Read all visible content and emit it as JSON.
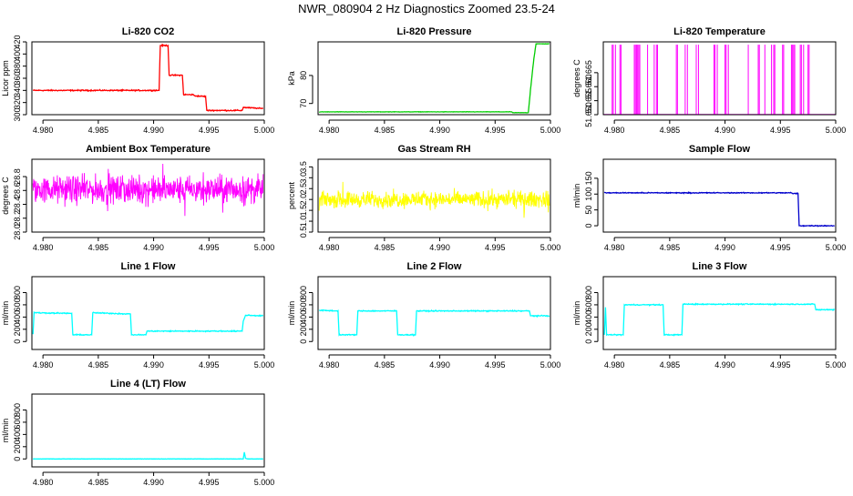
{
  "figure": {
    "title": "NWR_080904  2 Hz Diagnostics Zoomed 23.5-24"
  },
  "colors": {
    "red": "#ff0000",
    "green": "#00cc00",
    "magenta": "#ff00ff",
    "yellow": "#ffff00",
    "blue": "#0000cc",
    "cyan": "#00ffff"
  },
  "chart_data": [
    {
      "type": "line",
      "title": "Li-820 CO2",
      "ylabel": "Licor ppm",
      "color": "red",
      "xlim": [
        4.979,
        5.0
      ],
      "ylim": [
        300,
        420
      ],
      "xticks": [
        4.98,
        4.985,
        4.99,
        4.995,
        5.0
      ],
      "xtick_labels": [
        "4.980",
        "4.985",
        "4.990",
        "4.995",
        "5.000"
      ],
      "yticks": [
        300,
        320,
        340,
        360,
        380,
        400,
        420
      ],
      "ytick_labels": [
        "300",
        "320",
        "340",
        "360",
        "380",
        "400",
        "420"
      ],
      "noise": 0.8,
      "series": [
        {
          "x": [
            4.9791,
            4.9905,
            4.9906,
            4.9913,
            4.9914,
            4.9926,
            4.9927,
            4.9936,
            4.9937,
            4.9947,
            4.9948,
            4.998,
            4.9981,
            4.9999
          ],
          "y": [
            340,
            340,
            414,
            414,
            365,
            365,
            333,
            333,
            331,
            330,
            307,
            307,
            312,
            310
          ]
        }
      ]
    },
    {
      "type": "line",
      "title": "Li-820 Pressure",
      "ylabel": "kPa",
      "color": "green",
      "xlim": [
        4.979,
        5.0
      ],
      "ylim": [
        66,
        92
      ],
      "xticks": [
        4.98,
        4.985,
        4.99,
        4.995,
        5.0
      ],
      "xtick_labels": [
        "4.980",
        "4.985",
        "4.990",
        "4.995",
        "5.000"
      ],
      "yticks": [
        70,
        80
      ],
      "ytick_labels": [
        "70",
        "80"
      ],
      "noise": 0.05,
      "series": [
        {
          "x": [
            4.9791,
            4.9965,
            4.9966,
            4.998,
            4.9982,
            4.9985,
            4.9987,
            4.9999
          ],
          "y": [
            67.0,
            67.0,
            66.7,
            66.7,
            75,
            86,
            91.3,
            91.3
          ]
        }
      ]
    },
    {
      "type": "line",
      "title": "Li-820 Temperature",
      "ylabel": "degrees C",
      "color": "magenta",
      "xlim": [
        4.979,
        5.0
      ],
      "ylim": [
        51.65,
        51.676
      ],
      "xticks": [
        4.98,
        4.985,
        4.99,
        4.995,
        5.0
      ],
      "xtick_labels": [
        "4.980",
        "4.985",
        "4.990",
        "4.995",
        "5.000"
      ],
      "yticks": [
        51.65,
        51.655,
        51.66,
        51.665
      ],
      "ytick_labels": [
        "51.650",
        "51.655",
        "51.660",
        "51.665"
      ],
      "low": 51.65,
      "high": 51.675,
      "spikes_x": [
        4.9798,
        4.9799,
        4.9801,
        4.9805,
        4.9806,
        4.9818,
        4.9819,
        4.982,
        4.9821,
        4.9822,
        4.9823,
        4.983,
        4.9836,
        4.9838,
        4.9839,
        4.9856,
        4.9857,
        4.9864,
        4.9866,
        4.9874,
        4.9876,
        4.989,
        4.9891,
        4.9893,
        4.99,
        4.9901,
        4.9903,
        4.9921,
        4.993,
        4.9931,
        4.9936,
        4.9942,
        4.9944,
        4.9945,
        4.9952,
        4.9953,
        4.996,
        4.9961,
        4.9962,
        4.9963,
        4.9968,
        4.9969,
        4.9971,
        4.9975,
        4.9976
      ]
    },
    {
      "type": "line",
      "title": "Ambient Box Temperature",
      "ylabel": "degrees C",
      "color": "magenta",
      "xlim": [
        4.979,
        5.0
      ],
      "ylim": [
        28.0,
        29.05
      ],
      "xticks": [
        4.98,
        4.985,
        4.99,
        4.995,
        5.0
      ],
      "xtick_labels": [
        "4.980",
        "4.985",
        "4.990",
        "4.995",
        "5.000"
      ],
      "yticks": [
        28.0,
        28.2,
        28.4,
        28.6,
        28.8
      ],
      "ytick_labels": [
        "28.0",
        "28.2",
        "28.4",
        "28.6",
        "28.8"
      ],
      "band_center": 28.61,
      "band_noise": 0.17,
      "noise_density": 700
    },
    {
      "type": "line",
      "title": "Gas Stream RH",
      "ylabel": "percent",
      "color": "yellow",
      "xlim": [
        4.979,
        5.0
      ],
      "ylim": [
        0.5,
        3.85
      ],
      "xticks": [
        4.98,
        4.985,
        4.99,
        4.995,
        5.0
      ],
      "xtick_labels": [
        "4.980",
        "4.985",
        "4.990",
        "4.995",
        "5.000"
      ],
      "yticks": [
        0.5,
        1.0,
        1.5,
        2.0,
        2.5,
        3.0,
        3.5
      ],
      "ytick_labels": [
        "0.5",
        "1.0",
        "1.5",
        "2.0",
        "2.5",
        "3.0",
        "3.5"
      ],
      "band_center": 2.0,
      "band_noise": 0.32,
      "noise_density": 700
    },
    {
      "type": "line",
      "title": "Sample Flow",
      "ylabel": "ml/min",
      "color": "blue",
      "xlim": [
        4.979,
        5.0
      ],
      "ylim": [
        -20,
        210
      ],
      "xticks": [
        4.98,
        4.985,
        4.99,
        4.995,
        5.0
      ],
      "xtick_labels": [
        "4.980",
        "4.985",
        "4.990",
        "4.995",
        "5.000"
      ],
      "yticks": [
        0,
        50,
        100,
        150
      ],
      "ytick_labels": [
        "0",
        "50",
        "100",
        "150"
      ],
      "noise": 1.2,
      "series": [
        {
          "x": [
            4.9791,
            4.996,
            4.9961,
            4.9966,
            4.9967,
            4.9999
          ],
          "y": [
            104,
            104,
            102,
            102,
            0,
            0
          ]
        }
      ]
    },
    {
      "type": "line",
      "title": "Line 1 Flow",
      "ylabel": "ml/min",
      "color": "cyan",
      "xlim": [
        4.979,
        5.0
      ],
      "ylim": [
        -130,
        1060
      ],
      "xticks": [
        4.98,
        4.985,
        4.99,
        4.995,
        5.0
      ],
      "xtick_labels": [
        "4.980",
        "4.985",
        "4.990",
        "4.995",
        "5.000"
      ],
      "yticks": [
        0,
        200,
        400,
        600,
        800
      ],
      "ytick_labels": [
        "0",
        "200",
        "400",
        "600",
        "800"
      ],
      "noise": 7,
      "series": [
        {
          "x": [
            4.9791,
            4.9792,
            4.9793,
            4.9826,
            4.9827,
            4.9844,
            4.9845,
            4.9879,
            4.988,
            4.9893,
            4.9894,
            4.998,
            4.9981,
            4.9983,
            4.9999
          ],
          "y": [
            120,
            480,
            470,
            460,
            110,
            110,
            470,
            450,
            110,
            110,
            170,
            170,
            330,
            430,
            420
          ]
        }
      ]
    },
    {
      "type": "line",
      "title": "Line 2 Flow",
      "ylabel": "ml/min",
      "color": "cyan",
      "xlim": [
        4.979,
        5.0
      ],
      "ylim": [
        -130,
        1060
      ],
      "xticks": [
        4.98,
        4.985,
        4.99,
        4.995,
        5.0
      ],
      "xtick_labels": [
        "4.980",
        "4.985",
        "4.990",
        "4.995",
        "5.000"
      ],
      "yticks": [
        0,
        200,
        400,
        600,
        800
      ],
      "ytick_labels": [
        "0",
        "200",
        "400",
        "600",
        "800"
      ],
      "noise": 7,
      "series": [
        {
          "x": [
            4.9791,
            4.9808,
            4.9809,
            4.9825,
            4.9826,
            4.9861,
            4.9862,
            4.9878,
            4.9879,
            4.9981,
            4.9982,
            4.9999
          ],
          "y": [
            510,
            500,
            110,
            110,
            500,
            500,
            110,
            110,
            500,
            500,
            420,
            420
          ]
        }
      ]
    },
    {
      "type": "line",
      "title": "Line 3 Flow",
      "ylabel": "ml/min",
      "color": "cyan",
      "xlim": [
        4.979,
        5.0
      ],
      "ylim": [
        -130,
        1060
      ],
      "xticks": [
        4.98,
        4.985,
        4.99,
        4.995,
        5.0
      ],
      "xtick_labels": [
        "4.980",
        "4.985",
        "4.990",
        "4.995",
        "5.000"
      ],
      "yticks": [
        0,
        200,
        400,
        600,
        800
      ],
      "ytick_labels": [
        "0",
        "200",
        "400",
        "600",
        "800"
      ],
      "noise": 7,
      "series": [
        {
          "x": [
            4.9791,
            4.9792,
            4.9793,
            4.9808,
            4.9809,
            4.9844,
            4.9845,
            4.9861,
            4.9862,
            4.9981,
            4.9982,
            4.9999
          ],
          "y": [
            110,
            560,
            110,
            110,
            600,
            600,
            110,
            110,
            610,
            610,
            520,
            520
          ]
        }
      ]
    },
    {
      "type": "line",
      "title": "Line 4 (LT) Flow",
      "ylabel": "ml/min",
      "color": "cyan",
      "xlim": [
        4.979,
        5.0
      ],
      "ylim": [
        -130,
        1060
      ],
      "xticks": [
        4.98,
        4.985,
        4.99,
        4.995,
        5.0
      ],
      "xtick_labels": [
        "4.980",
        "4.985",
        "4.990",
        "4.995",
        "5.000"
      ],
      "yticks": [
        0,
        200,
        400,
        600,
        800
      ],
      "ytick_labels": [
        "0",
        "200",
        "400",
        "600",
        "800"
      ],
      "noise": 2,
      "series": [
        {
          "x": [
            4.9791,
            4.9981,
            4.9982,
            4.9983,
            4.9985,
            4.9999
          ],
          "y": [
            0,
            0,
            110,
            10,
            0,
            0
          ]
        }
      ]
    }
  ]
}
